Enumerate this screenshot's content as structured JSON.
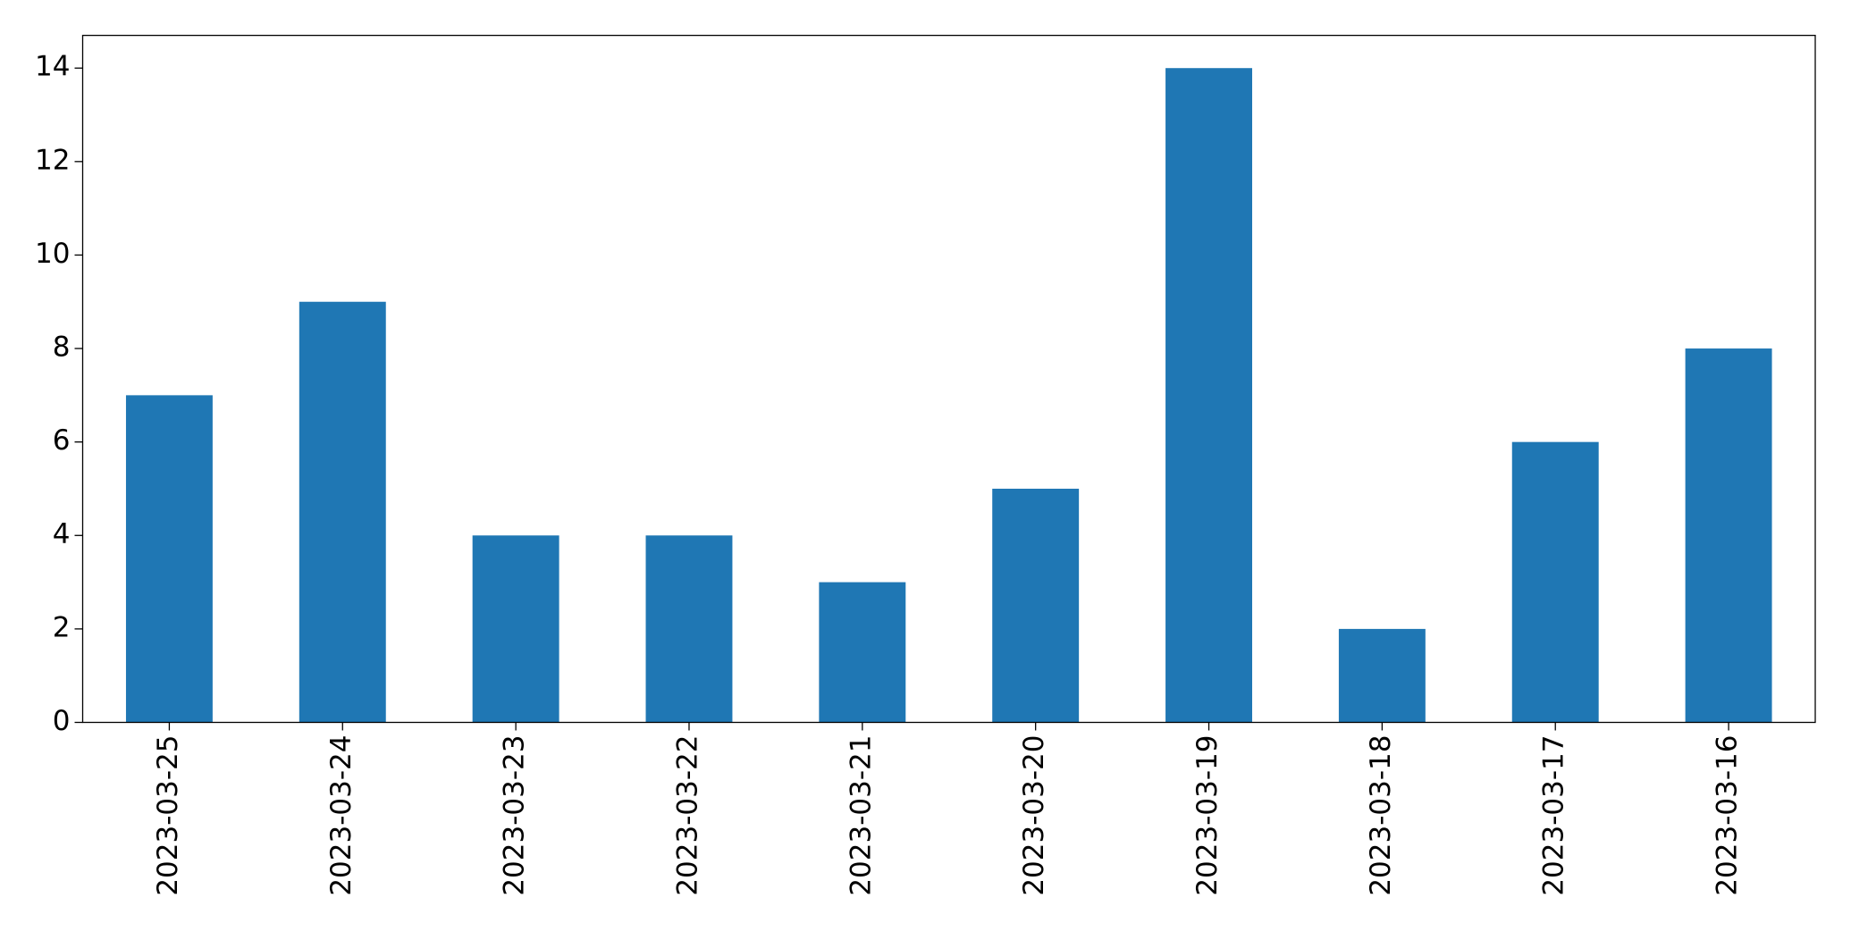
{
  "chart_data": {
    "type": "bar",
    "categories": [
      "2023-03-25",
      "2023-03-24",
      "2023-03-23",
      "2023-03-22",
      "2023-03-21",
      "2023-03-20",
      "2023-03-19",
      "2023-03-18",
      "2023-03-17",
      "2023-03-16"
    ],
    "values": [
      7,
      9,
      4,
      4,
      3,
      5,
      14,
      2,
      6,
      8
    ],
    "color": "#1f77b4",
    "ylim": [
      0,
      14.7
    ],
    "yticks": [
      0,
      2,
      4,
      6,
      8,
      10,
      12,
      14
    ],
    "grid": false
  }
}
